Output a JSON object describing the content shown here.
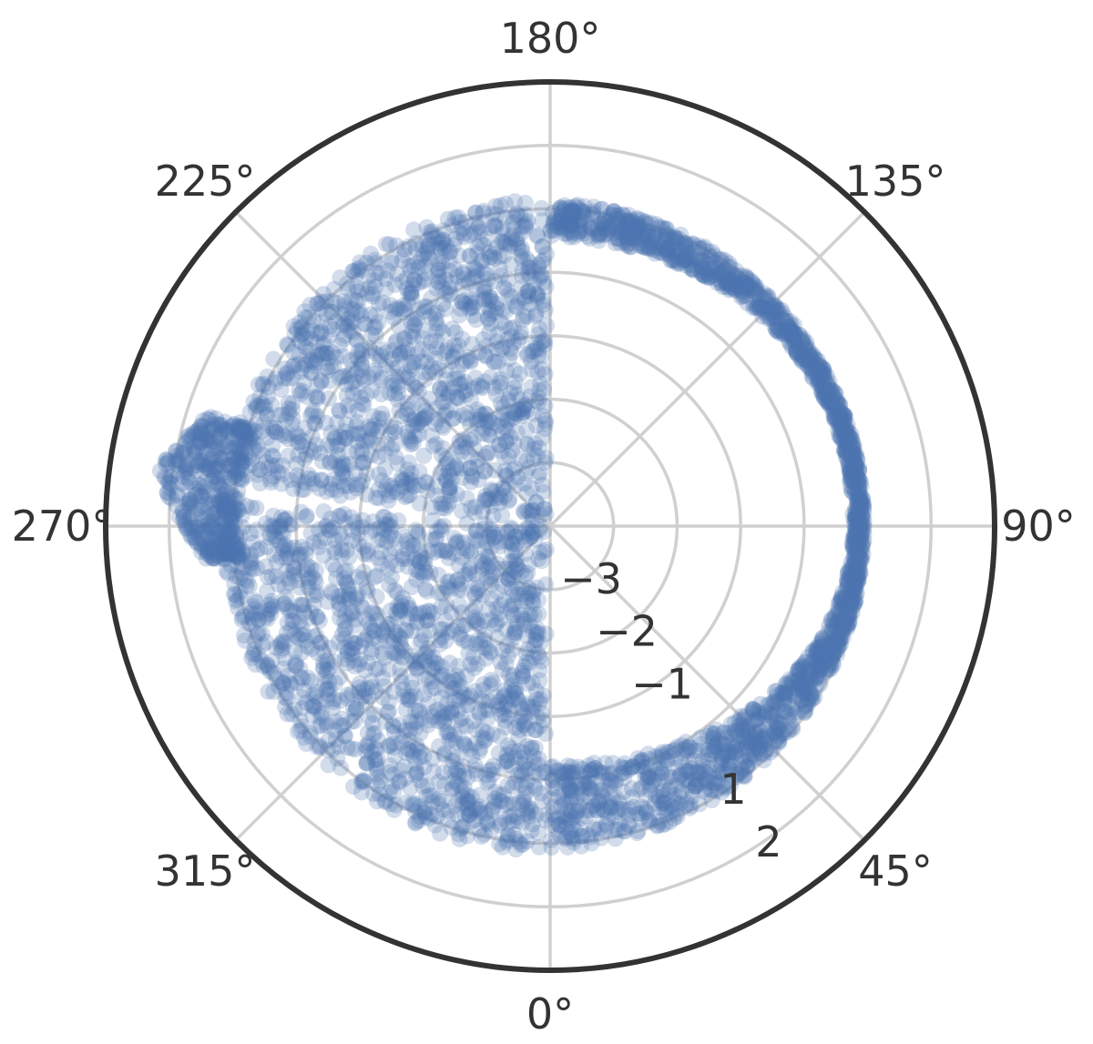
{
  "chart_data": {
    "type": "scatter",
    "subtype": "polar",
    "title": "",
    "grid": true,
    "point_color": "#4c72b0",
    "point_alpha": 0.25,
    "frame_color": "#333333",
    "grid_color": "#d0d0d0",
    "theta_zero_location": "bottom",
    "theta_direction": "counterclockwise",
    "theta_ticks_deg": [
      0,
      45,
      90,
      135,
      180,
      225,
      270,
      315
    ],
    "theta_tick_labels": [
      "0°",
      "45°",
      "90°",
      "135°",
      "180°",
      "225°",
      "270°",
      "315°"
    ],
    "r_range": [
      -4,
      3
    ],
    "r_grid": [
      -3,
      -2,
      -1,
      0,
      1,
      2
    ],
    "r_tick_labels": [
      {
        "value": -3,
        "text": "−3"
      },
      {
        "value": -2,
        "text": "−2"
      },
      {
        "value": -1,
        "text": "−1"
      },
      {
        "value": 1,
        "text": "1"
      },
      {
        "value": 2,
        "text": "2"
      }
    ],
    "r_label_angle_deg": 34,
    "clusters": [
      {
        "name": "",
        "theta_deg_range": [
          180,
          360
        ],
        "r_range": [
          -4,
          1.1
        ],
        "density": "dense"
      },
      {
        "name": "",
        "theta_deg_range": [
          255,
          275
        ],
        "r_range": [
          1.0,
          2.2
        ],
        "density": "medium"
      },
      {
        "name": "",
        "theta_deg_range": [
          0,
          180
        ],
        "r_center": 0.6,
        "r_spread_bottom": 1.6,
        "density": "dense"
      }
    ]
  }
}
